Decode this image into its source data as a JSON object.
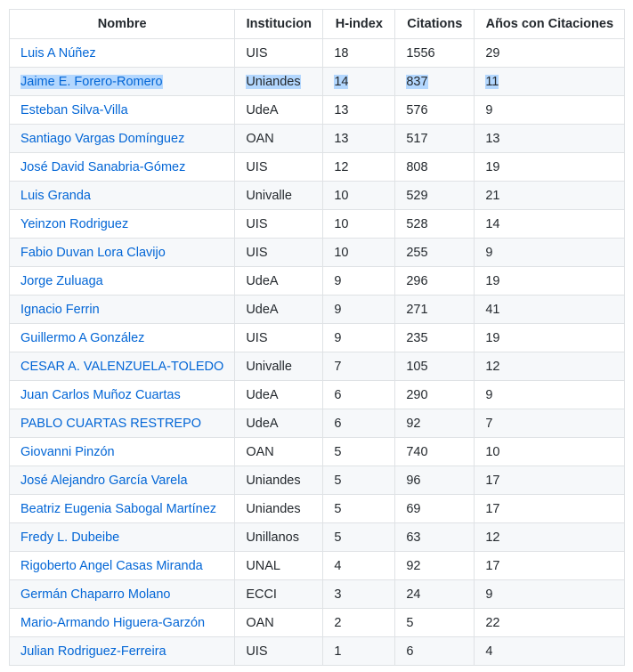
{
  "table": {
    "headers": [
      "Nombre",
      "Institucion",
      "H-index",
      "Citations",
      "Años con Citaciones"
    ],
    "rows": [
      [
        "Luis A Núñez",
        "UIS",
        "18",
        "1556",
        "29"
      ],
      [
        "Jaime E. Forero-Romero",
        "Uniandes",
        "14",
        "837",
        "11"
      ],
      [
        "Esteban Silva-Villa",
        "UdeA",
        "13",
        "576",
        "9"
      ],
      [
        "Santiago Vargas Domínguez",
        "OAN",
        "13",
        "517",
        "13"
      ],
      [
        "José David Sanabria-Gómez",
        "UIS",
        "12",
        "808",
        "19"
      ],
      [
        "Luis Granda",
        "Univalle",
        "10",
        "529",
        "21"
      ],
      [
        "Yeinzon Rodriguez",
        "UIS",
        "10",
        "528",
        "14"
      ],
      [
        "Fabio Duvan Lora Clavijo",
        "UIS",
        "10",
        "255",
        "9"
      ],
      [
        "Jorge Zuluaga",
        "UdeA",
        "9",
        "296",
        "19"
      ],
      [
        "Ignacio Ferrin",
        "UdeA",
        "9",
        "271",
        "41"
      ],
      [
        "Guillermo A González",
        "UIS",
        "9",
        "235",
        "19"
      ],
      [
        "CESAR A. VALENZUELA-TOLEDO",
        "Univalle",
        "7",
        "105",
        "12"
      ],
      [
        "Juan Carlos Muñoz Cuartas",
        "UdeA",
        "6",
        "290",
        "9"
      ],
      [
        "PABLO CUARTAS RESTREPO",
        "UdeA",
        "6",
        "92",
        "7"
      ],
      [
        "Giovanni Pinzón",
        "OAN",
        "5",
        "740",
        "10"
      ],
      [
        "José Alejandro García Varela",
        "Uniandes",
        "5",
        "96",
        "17"
      ],
      [
        "Beatriz Eugenia Sabogal Martínez",
        "Uniandes",
        "5",
        "69",
        "17"
      ],
      [
        "Fredy L. Dubeibe",
        "Unillanos",
        "5",
        "63",
        "12"
      ],
      [
        "Rigoberto Angel Casas Miranda",
        "UNAL",
        "4",
        "92",
        "17"
      ],
      [
        "Germán Chaparro Molano",
        "ECCI",
        "3",
        "24",
        "9"
      ],
      [
        "Mario-Armando Higuera-Garzón",
        "OAN",
        "2",
        "5",
        "22"
      ],
      [
        "Julian Rodriguez-Ferreira",
        "UIS",
        "1",
        "6",
        "4"
      ]
    ],
    "selected_row": 1
  },
  "colors": {
    "link": "#0366d6",
    "text": "#24292e",
    "border": "#dfe2e5",
    "stripe": "#f6f8fa",
    "selection": "#b3d7fe"
  }
}
